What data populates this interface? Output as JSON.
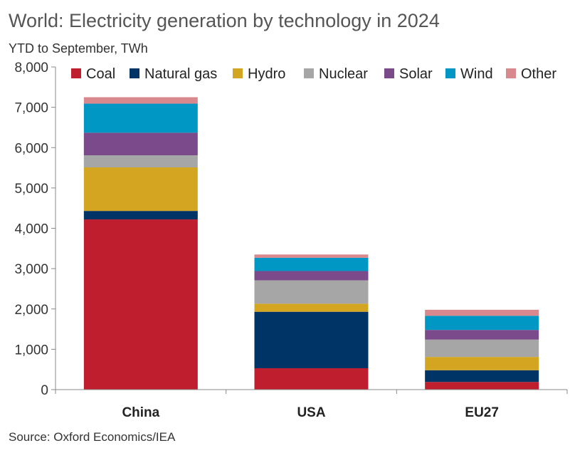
{
  "header": {
    "title": "World: Electricity generation by technology in 2024",
    "subtitle": "YTD to September, TWh"
  },
  "footer": {
    "source": "Source: Oxford Economics/IEA"
  },
  "chart_data": {
    "type": "bar",
    "stacked": true,
    "title": "World: Electricity generation by technology in 2024",
    "subtitle": "YTD to September, TWh",
    "xlabel": "",
    "ylabel": "",
    "categories": [
      "China",
      "USA",
      "EU27"
    ],
    "ylim": [
      0,
      8000
    ],
    "y_ticks": [
      0,
      1000,
      2000,
      3000,
      4000,
      5000,
      6000,
      7000,
      8000
    ],
    "y_tick_labels": [
      "0",
      "1,000",
      "2,000",
      "3,000",
      "4,000",
      "5,000",
      "6,000",
      "7,000",
      "8,000"
    ],
    "grid": false,
    "legend_position": "top",
    "series": [
      {
        "name": "Coal",
        "color": "#BE1E2D",
        "values": [
          4220,
          530,
          190
        ]
      },
      {
        "name": "Natural gas",
        "color": "#003366",
        "values": [
          210,
          1400,
          290
        ]
      },
      {
        "name": "Hydro",
        "color": "#D4A521",
        "values": [
          1080,
          200,
          330
        ]
      },
      {
        "name": "Nuclear",
        "color": "#A6A6A6",
        "values": [
          300,
          580,
          430
        ]
      },
      {
        "name": "Solar",
        "color": "#7B4A8A",
        "values": [
          560,
          230,
          240
        ]
      },
      {
        "name": "Wind",
        "color": "#0097C4",
        "values": [
          720,
          330,
          350
        ]
      },
      {
        "name": "Other",
        "color": "#D9898E",
        "values": [
          160,
          80,
          150
        ]
      }
    ]
  }
}
